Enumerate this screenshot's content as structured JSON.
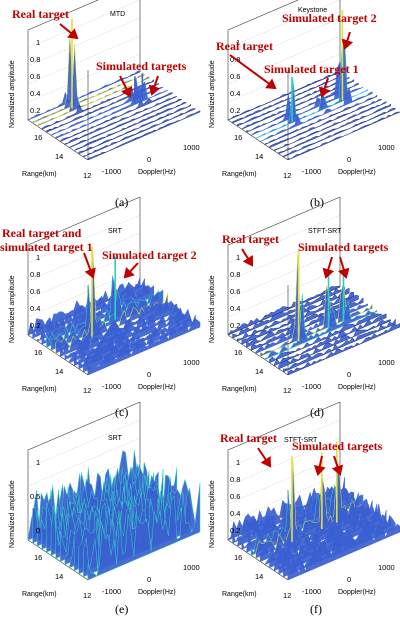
{
  "panels": [
    {
      "id": "a",
      "caption": "(a)",
      "title": "MTD",
      "ylabel": "Normalized amplitude",
      "xlabel": "Doppler(Hz)",
      "rlabel": "Range(km)",
      "zticks": [
        "1",
        "0.8",
        "0.6",
        "0.4",
        "0.2"
      ],
      "rticks": [
        "16",
        "14",
        "12"
      ],
      "dticks": [
        "-1000",
        "0",
        "1000"
      ],
      "annotations": [
        "Real target",
        "Simulated targets"
      ],
      "peaks": [
        {
          "range": 16,
          "doppler": -500,
          "amp": 1.0
        },
        {
          "range": 14.5,
          "doppler": 650,
          "amp": 0.3
        },
        {
          "range": 14.5,
          "doppler": 850,
          "amp": 0.3
        }
      ],
      "noise_level": 0.02
    },
    {
      "id": "b",
      "caption": "(b)",
      "title": "Keystone",
      "ylabel": "Normalized amplitude",
      "xlabel": "Doppler(Hz)",
      "rlabel": "Range(km)",
      "zticks": [
        "1",
        "0.8",
        "0.6",
        "0.4",
        "0.2"
      ],
      "rticks": [
        "16",
        "14",
        "12"
      ],
      "dticks": [
        "-1000",
        "0",
        "1000"
      ],
      "annotations": [
        "Real target",
        "Simulated target 1",
        "Simulated target 2"
      ],
      "peaks": [
        {
          "range": 14.5,
          "doppler": -500,
          "amp": 0.5
        },
        {
          "range": 14.5,
          "doppler": 300,
          "amp": 0.25
        },
        {
          "range": 14.5,
          "doppler": 850,
          "amp": 1.0
        }
      ],
      "noise_level": 0.02
    },
    {
      "id": "c",
      "caption": "(c)",
      "title": "SRT",
      "ylabel": "Normalized amplitude",
      "xlabel": "Doppler(Hz)",
      "rlabel": "Range(km)",
      "zticks": [
        "1",
        "0.8",
        "0.6",
        "0.4",
        "0.2"
      ],
      "rticks": [
        "16",
        "14",
        "12"
      ],
      "dticks": [
        "-1000",
        "0",
        "1000"
      ],
      "annotations": [
        "Real target and",
        "simulated target 1",
        "Simulated target 2"
      ],
      "peaks": [
        {
          "range": 14.5,
          "doppler": -500,
          "amp": 1.0
        },
        {
          "range": 15,
          "doppler": 300,
          "amp": 0.7
        }
      ],
      "noise_level": 0.15
    },
    {
      "id": "d",
      "caption": "(d)",
      "title": "STFT-SRT",
      "ylabel": "Normalized amplitude",
      "xlabel": "Doppler(Hz)",
      "rlabel": "Range(km)",
      "zticks": [
        "1",
        "0.8",
        "0.6",
        "0.4",
        "0.2"
      ],
      "rticks": [
        "16",
        "14",
        "12"
      ],
      "dticks": [
        "-1000",
        "0",
        "1000"
      ],
      "annotations": [
        "Real target",
        "Simulated targets"
      ],
      "peaks": [
        {
          "range": 14,
          "doppler": -500,
          "amp": 1.0
        },
        {
          "range": 14,
          "doppler": 300,
          "amp": 0.65
        },
        {
          "range": 14,
          "doppler": 700,
          "amp": 0.6
        }
      ],
      "noise_level": 0.06
    },
    {
      "id": "e",
      "caption": "(e)",
      "title": "SRT",
      "ylabel": "Normalized amplitude",
      "xlabel": "Doppler(Hz)",
      "rlabel": "Range(km)",
      "zticks": [
        "1",
        "0.5",
        "0"
      ],
      "rticks": [
        "16",
        "14",
        "12"
      ],
      "dticks": [
        "-1000",
        "0",
        "1000"
      ],
      "annotations": [],
      "peaks": [],
      "noise_level": 0.55
    },
    {
      "id": "f",
      "caption": "(f)",
      "title": "STFT-SRT",
      "ylabel": "Normalized amplitude",
      "xlabel": "Doppler(Hz)",
      "rlabel": "Range(km)",
      "zticks": [
        "1",
        "0.8",
        "0.6",
        "0.4",
        "0.2"
      ],
      "rticks": [
        "16",
        "14",
        "12"
      ],
      "dticks": [
        "-1000",
        "0",
        "1000"
      ],
      "annotations": [
        "Real target",
        "Simulated targets"
      ],
      "peaks": [
        {
          "range": 14.5,
          "doppler": -500,
          "amp": 0.95
        },
        {
          "range": 14.5,
          "doppler": 300,
          "amp": 0.85
        },
        {
          "range": 14.5,
          "doppler": 700,
          "amp": 0.9
        }
      ],
      "noise_level": 0.2
    }
  ],
  "colors": {
    "surface_low": "#20307a",
    "surface_mid": "#3a5fd0",
    "surface_high": "#30d0c0",
    "surface_top": "#e0e040",
    "annotation": "#c00000"
  }
}
